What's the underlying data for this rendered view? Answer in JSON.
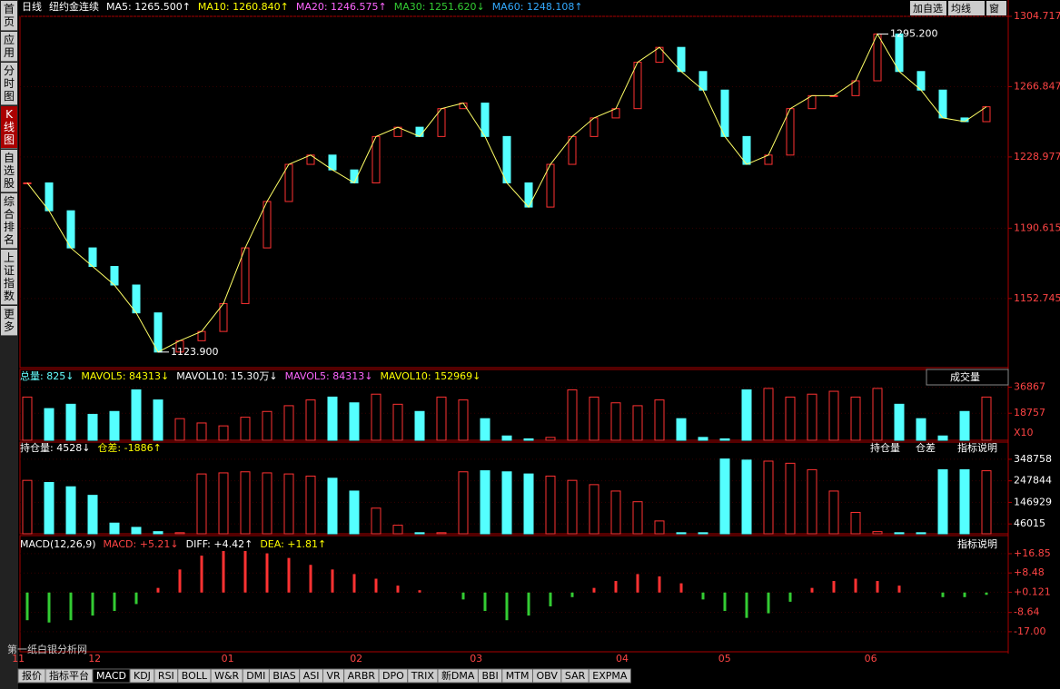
{
  "sidebar": [
    "首页",
    "应用",
    "分时图",
    "K线图",
    "自选股",
    "综合排名",
    "上证指数",
    "更多"
  ],
  "toolbar": [
    "加自选",
    "均线",
    "窗"
  ],
  "price_panel": {
    "header": [
      {
        "text": "日线",
        "color": "#ffffff"
      },
      {
        "text": "纽约金连续",
        "color": "#ffffff"
      },
      {
        "text": "MA5: 1265.500↑",
        "color": "#ffffff"
      },
      {
        "text": "MA10: 1260.840↑",
        "color": "#ffff00"
      },
      {
        "text": "MA20: 1246.575↑",
        "color": "#ff66ff"
      },
      {
        "text": "MA30: 1251.620↓",
        "color": "#33cc33"
      },
      {
        "text": "MA60: 1248.108↑",
        "color": "#33aaff"
      }
    ],
    "ylim": [
      1115.5,
      1304.717
    ],
    "yticks": [
      1304.717,
      1266.847,
      1228.977,
      1190.615,
      1152.745
    ],
    "closes": [
      1215,
      1200,
      1180,
      1170,
      1160,
      1145,
      1123.9,
      1130,
      1135,
      1150,
      1180,
      1205,
      1225,
      1230,
      1222,
      1215,
      1240,
      1245,
      1240,
      1255,
      1258,
      1240,
      1215,
      1202,
      1225,
      1240,
      1250,
      1255,
      1280,
      1288,
      1275,
      1265,
      1240,
      1225,
      1230,
      1255,
      1262,
      1262,
      1270,
      1295.2,
      1275,
      1265,
      1250,
      1248,
      1256
    ],
    "annotations": [
      {
        "value": 1295.2,
        "label": "1295.200"
      },
      {
        "value": 1123.9,
        "label": "1123.900"
      }
    ]
  },
  "volume_panel": {
    "header": [
      {
        "text": "总量: 825↓",
        "color": "#66ffff"
      },
      {
        "text": "MAVOL5: 84313↓",
        "color": "#ffff00"
      },
      {
        "text": "MAVOL10: 15.30万↓",
        "color": "#ffffff"
      },
      {
        "text": "MAVOL5: 84313↓",
        "color": "#ff66ff"
      },
      {
        "text": "MAVOL10: 152969↓",
        "color": "#ffff00"
      }
    ],
    "button": "成交量",
    "ylim": [
      0,
      49150
    ],
    "yticks": [
      36867,
      18757
    ],
    "unit": "X10",
    "values": [
      30000,
      22000,
      25000,
      18000,
      20000,
      35000,
      28000,
      15000,
      12000,
      10000,
      16000,
      20000,
      24000,
      28000,
      30000,
      26000,
      32000,
      25000,
      20000,
      30000,
      28000,
      15000,
      3000,
      1000,
      2000,
      35000,
      30000,
      26000,
      24000,
      28000,
      15000,
      2000,
      1000,
      35000,
      36000,
      30000,
      32000,
      34000,
      30000,
      36000,
      25000,
      15000,
      3000,
      20000,
      30000
    ]
  },
  "oi_panel": {
    "header": [
      {
        "text": "持仓量: 4528↓",
        "color": "#ffffff"
      },
      {
        "text": "仓差: -1886↑",
        "color": "#ffff00"
      }
    ],
    "checks": [
      "持仓量",
      "仓差"
    ],
    "button": "指标说明",
    "ylim": [
      0,
      429168
    ],
    "yticks": [
      348758,
      247844,
      146929,
      46015
    ],
    "values": [
      250000,
      240000,
      220000,
      180000,
      50000,
      30000,
      10000,
      5000,
      280000,
      285000,
      290000,
      285000,
      280000,
      270000,
      260000,
      200000,
      120000,
      40000,
      5000,
      5000,
      290000,
      295000,
      290000,
      280000,
      270000,
      250000,
      230000,
      200000,
      150000,
      60000,
      5000,
      5000,
      350000,
      345000,
      340000,
      330000,
      300000,
      200000,
      100000,
      10000,
      5000,
      5000,
      300000,
      300000,
      295000
    ]
  },
  "macd_panel": {
    "header": [
      {
        "text": "MACD(12,26,9)",
        "color": "#ffffff"
      },
      {
        "text": "MACD: +5.21↓",
        "color": "#ff4444"
      },
      {
        "text": "DIFF: +4.42↑",
        "color": "#ffffff"
      },
      {
        "text": "DEA: +1.81↑",
        "color": "#ffff00"
      }
    ],
    "button": "指标说明",
    "ylim": [
      -25.7,
      24.7
    ],
    "yticks": [
      {
        "value": 16.85,
        "label": "+16.85"
      },
      {
        "value": 8.48,
        "label": "+8.48"
      },
      {
        "value": 0.121,
        "label": "+0.121"
      },
      {
        "value": -8.64,
        "label": "-8.64"
      },
      {
        "value": -17,
        "label": "-17.00"
      }
    ],
    "values": [
      -12,
      -13,
      -12,
      -10,
      -8,
      -5,
      2,
      10,
      16,
      18,
      18,
      17,
      15,
      12,
      10,
      8,
      6,
      3,
      1,
      0,
      -3,
      -8,
      -12,
      -10,
      -6,
      -2,
      2,
      5,
      8,
      7,
      4,
      -3,
      -8,
      -11,
      -9,
      -4,
      2,
      5,
      6,
      5,
      3,
      0,
      -2,
      -2,
      -1
    ]
  },
  "month_ticks": [
    {
      "value": -0.7,
      "label": "11"
    },
    {
      "value": 2.8,
      "label": "12"
    },
    {
      "value": 8.9,
      "label": "01"
    },
    {
      "value": 14.8,
      "label": "02"
    },
    {
      "value": 20.3,
      "label": "03"
    },
    {
      "value": 27,
      "label": "04"
    },
    {
      "value": 31.7,
      "label": "05"
    },
    {
      "value": 38.4,
      "label": "06"
    }
  ],
  "watermark": "第一纸白银分析网",
  "bottom_tabs": [
    "报价",
    "指标平台",
    "MACD",
    "KDJ",
    "RSI",
    "BOLL",
    "W&R",
    "DMI",
    "BIAS",
    "ASI",
    "VR",
    "ARBR",
    "DPO",
    "TRIX",
    "新DMA",
    "BBI",
    "MTM",
    "OBV",
    "SAR",
    "EXPMA"
  ]
}
